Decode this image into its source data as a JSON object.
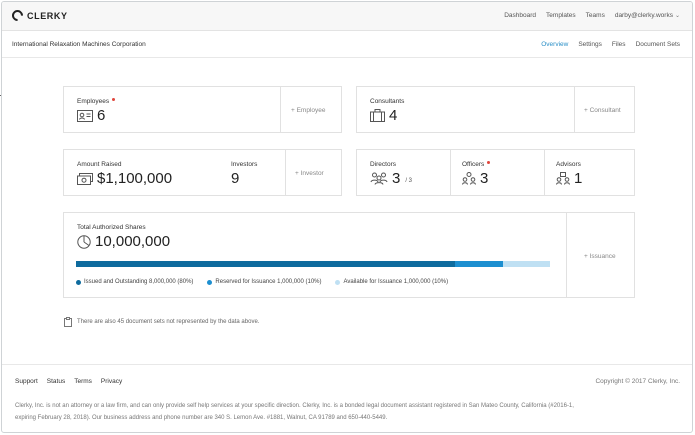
{
  "brand": {
    "name": "CLERKY"
  },
  "topnav": {
    "links": [
      "Dashboard",
      "Templates",
      "Teams"
    ],
    "user": "darby@clerky.works"
  },
  "company": {
    "name": "International Relaxation Machines Corporation"
  },
  "subtabs": [
    "Overview",
    "Settings",
    "Files",
    "Document Sets"
  ],
  "employees": {
    "label": "Employees",
    "value": "6",
    "add": "+ Employee"
  },
  "consultants": {
    "label": "Consultants",
    "value": "4",
    "add": "+ Consultant"
  },
  "funding": {
    "amount_label": "Amount Raised",
    "amount_value": "$1,100,000",
    "investors_label": "Investors",
    "investors_value": "9",
    "add": "+ Investor"
  },
  "board": {
    "directors_label": "Directors",
    "directors_value": "3",
    "directors_total": "/ 3",
    "officers_label": "Officers",
    "officers_value": "3",
    "advisors_label": "Advisors",
    "advisors_value": "1"
  },
  "shares": {
    "label": "Total Authorized Shares",
    "value": "10,000,000",
    "add": "+ Issuance",
    "segments": [
      {
        "label": "Issued and Outstanding 8,000,000 (80%)",
        "fraction": 0.8,
        "color": "#0e6b9e"
      },
      {
        "label": "Reserved for Issuance 1,000,000 (10%)",
        "fraction": 0.1,
        "color": "#1d8fd0"
      },
      {
        "label": "Available for Issuance 1,000,000 (10%)",
        "fraction": 0.1,
        "color": "#bfe0f3"
      }
    ]
  },
  "note": "There are also 45 document sets not represented by the data above.",
  "footer": {
    "links": [
      "Support",
      "Status",
      "Terms",
      "Privacy"
    ],
    "copyright": "Copyright © 2017 Clerky, Inc.",
    "disclaimer": "Clerky, Inc. is not an attorney or a law firm, and can only provide self help services at your specific direction. Clerky, Inc. is a bonded legal document assistant registered in San Mateo County, California (#2016-1, expiring February 28, 2018). Our business address and phone number are 340 S. Lemon Ave. #1881, Walnut, CA 91789 and 650-440-5449."
  }
}
